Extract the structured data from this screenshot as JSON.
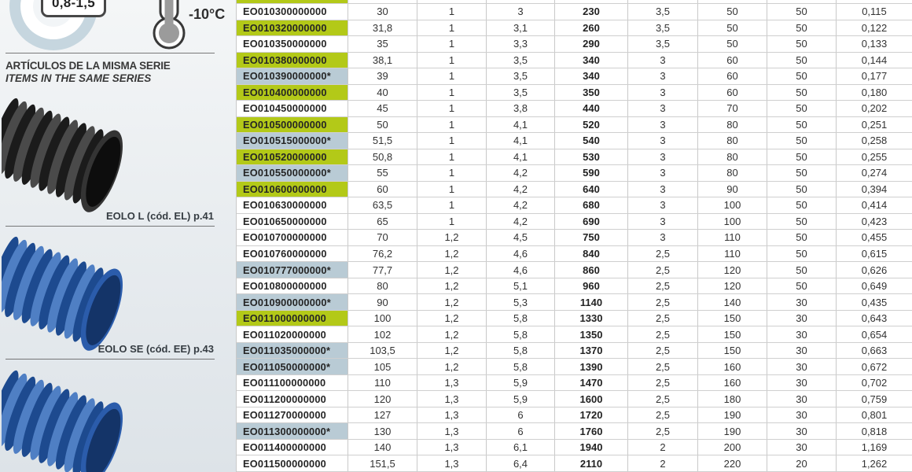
{
  "colors": {
    "green_highlight": "#b3c918",
    "blue_highlight": "#b9cbd5"
  },
  "sidebar": {
    "ratio_badge": "0,8-1,5",
    "temperature": "-10°C",
    "series_title_es": "ARTÍCULOS DE LA MISMA SERIE",
    "series_title_en": "ITEMS IN THE SAME SERIES",
    "items": [
      {
        "label": "EOLO L (cód. EL) p.41",
        "color": "black"
      },
      {
        "label": "EOLO SE (cód. EE) p.43",
        "color": "blue"
      },
      {
        "label": "",
        "color": "blue"
      }
    ]
  },
  "table": {
    "rows": [
      {
        "code": "",
        "highlight": "green",
        "partial": true,
        "values": [
          "",
          "",
          "",
          "",
          "",
          "",
          "",
          ""
        ]
      },
      {
        "code": "EO010300000000",
        "highlight": "none",
        "values": [
          "30",
          "1",
          "3",
          "230",
          "3,5",
          "50",
          "50",
          "0,115"
        ]
      },
      {
        "code": "EO010320000000",
        "highlight": "green",
        "values": [
          "31,8",
          "1",
          "3,1",
          "260",
          "3,5",
          "50",
          "50",
          "0,122"
        ]
      },
      {
        "code": "EO010350000000",
        "highlight": "none",
        "values": [
          "35",
          "1",
          "3,3",
          "290",
          "3,5",
          "50",
          "50",
          "0,133"
        ]
      },
      {
        "code": "EO010380000000",
        "highlight": "green",
        "values": [
          "38,1",
          "1",
          "3,5",
          "340",
          "3",
          "60",
          "50",
          "0,144"
        ]
      },
      {
        "code": "EO010390000000*",
        "highlight": "blue",
        "values": [
          "39",
          "1",
          "3,5",
          "340",
          "3",
          "60",
          "50",
          "0,177"
        ]
      },
      {
        "code": "EO010400000000",
        "highlight": "green",
        "values": [
          "40",
          "1",
          "3,5",
          "350",
          "3",
          "60",
          "50",
          "0,180"
        ]
      },
      {
        "code": "EO010450000000",
        "highlight": "none",
        "values": [
          "45",
          "1",
          "3,8",
          "440",
          "3",
          "70",
          "50",
          "0,202"
        ]
      },
      {
        "code": "EO010500000000",
        "highlight": "green",
        "values": [
          "50",
          "1",
          "4,1",
          "520",
          "3",
          "80",
          "50",
          "0,251"
        ]
      },
      {
        "code": "EO010515000000*",
        "highlight": "blue",
        "values": [
          "51,5",
          "1",
          "4,1",
          "540",
          "3",
          "80",
          "50",
          "0,258"
        ]
      },
      {
        "code": "EO010520000000",
        "highlight": "green",
        "values": [
          "50,8",
          "1",
          "4,1",
          "530",
          "3",
          "80",
          "50",
          "0,255"
        ]
      },
      {
        "code": "EO010550000000*",
        "highlight": "blue",
        "values": [
          "55",
          "1",
          "4,2",
          "590",
          "3",
          "80",
          "50",
          "0,274"
        ]
      },
      {
        "code": "EO010600000000",
        "highlight": "green",
        "values": [
          "60",
          "1",
          "4,2",
          "640",
          "3",
          "90",
          "50",
          "0,394"
        ]
      },
      {
        "code": "EO010630000000",
        "highlight": "none",
        "values": [
          "63,5",
          "1",
          "4,2",
          "680",
          "3",
          "100",
          "50",
          "0,414"
        ]
      },
      {
        "code": "EO010650000000",
        "highlight": "none",
        "values": [
          "65",
          "1",
          "4,2",
          "690",
          "3",
          "100",
          "50",
          "0,423"
        ]
      },
      {
        "code": "EO010700000000",
        "highlight": "none",
        "values": [
          "70",
          "1,2",
          "4,5",
          "750",
          "3",
          "110",
          "50",
          "0,455"
        ]
      },
      {
        "code": "EO010760000000",
        "highlight": "none",
        "values": [
          "76,2",
          "1,2",
          "4,6",
          "840",
          "2,5",
          "110",
          "50",
          "0,615"
        ]
      },
      {
        "code": "EO010777000000*",
        "highlight": "blue",
        "values": [
          "77,7",
          "1,2",
          "4,6",
          "860",
          "2,5",
          "120",
          "50",
          "0,626"
        ]
      },
      {
        "code": "EO010800000000",
        "highlight": "none",
        "values": [
          "80",
          "1,2",
          "5,1",
          "960",
          "2,5",
          "120",
          "50",
          "0,649"
        ]
      },
      {
        "code": "EO010900000000*",
        "highlight": "blue",
        "values": [
          "90",
          "1,2",
          "5,3",
          "1140",
          "2,5",
          "140",
          "30",
          "0,435"
        ]
      },
      {
        "code": "EO011000000000",
        "highlight": "green",
        "values": [
          "100",
          "1,2",
          "5,8",
          "1330",
          "2,5",
          "150",
          "30",
          "0,643"
        ]
      },
      {
        "code": "EO011020000000",
        "highlight": "none",
        "values": [
          "102",
          "1,2",
          "5,8",
          "1350",
          "2,5",
          "150",
          "30",
          "0,654"
        ]
      },
      {
        "code": "EO011035000000*",
        "highlight": "blue",
        "values": [
          "103,5",
          "1,2",
          "5,8",
          "1370",
          "2,5",
          "150",
          "30",
          "0,663"
        ]
      },
      {
        "code": "EO011050000000*",
        "highlight": "blue",
        "values": [
          "105",
          "1,2",
          "5,8",
          "1390",
          "2,5",
          "160",
          "30",
          "0,672"
        ]
      },
      {
        "code": "EO011100000000",
        "highlight": "none",
        "values": [
          "110",
          "1,3",
          "5,9",
          "1470",
          "2,5",
          "160",
          "30",
          "0,702"
        ]
      },
      {
        "code": "EO011200000000",
        "highlight": "none",
        "values": [
          "120",
          "1,3",
          "5,9",
          "1600",
          "2,5",
          "180",
          "30",
          "0,759"
        ]
      },
      {
        "code": "EO011270000000",
        "highlight": "none",
        "values": [
          "127",
          "1,3",
          "6",
          "1720",
          "2,5",
          "190",
          "30",
          "0,801"
        ]
      },
      {
        "code": "EO011300000000*",
        "highlight": "blue",
        "values": [
          "130",
          "1,3",
          "6",
          "1760",
          "2,5",
          "190",
          "30",
          "0,818"
        ]
      },
      {
        "code": "EO011400000000",
        "highlight": "none",
        "values": [
          "140",
          "1,3",
          "6,1",
          "1940",
          "2",
          "200",
          "30",
          "1,169"
        ]
      },
      {
        "code": "EO011500000000",
        "highlight": "none",
        "values": [
          "151,5",
          "1,3",
          "6,4",
          "2110",
          "2",
          "220",
          "20",
          "1,262"
        ]
      }
    ]
  }
}
